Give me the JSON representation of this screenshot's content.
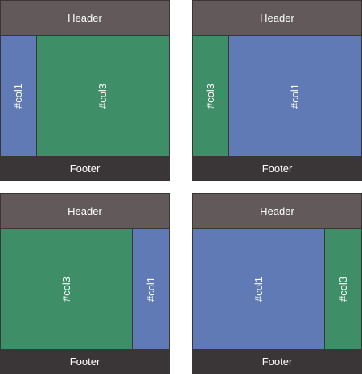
{
  "colors": {
    "header": "#625a5a",
    "footer": "#3a3536",
    "col1": "#5f7ab5",
    "col3": "#3e8e67"
  },
  "layouts": [
    {
      "header": "Header",
      "cols": [
        "#col1",
        "#col3"
      ],
      "footer": "Footer"
    },
    {
      "header": "Header",
      "cols": [
        "#col3",
        "#col1"
      ],
      "footer": "Footer"
    },
    {
      "header": "Header",
      "cols": [
        "#col3",
        "#col1"
      ],
      "footer": "Footer"
    },
    {
      "header": "Header",
      "cols": [
        "#col1",
        "#col3"
      ],
      "footer": "Footer"
    }
  ]
}
